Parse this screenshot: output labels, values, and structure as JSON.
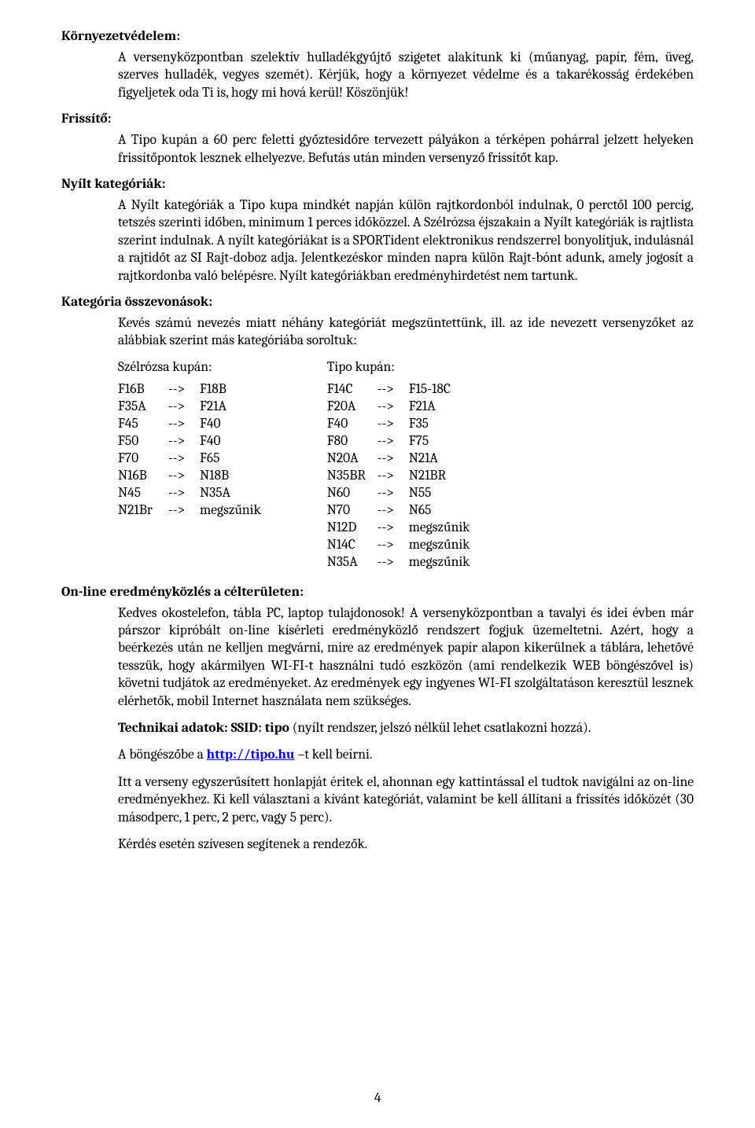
{
  "sections": {
    "env": {
      "heading": "Környezetvédelem:",
      "body": "A versenyközpontban szelektív hulladékgyűjtő szigetet alakítunk ki (műanyag, papír, fém, üveg, szerves hulladék, vegyes szemét). Kérjük, hogy a környezet védelme és a takarékosság érdekében figyeljetek oda Ti is, hogy mi hová kerül! Köszönjük!"
    },
    "refresh": {
      "heading": "Frissítő:",
      "body": "A Tipo kupán a 60 perc feletti győztesidőre tervezett pályákon a térképen pohárral jelzett helyeken frissítőpontok lesznek elhelyezve. Befutás után minden versenyző frissítőt kap."
    },
    "open": {
      "heading": "Nyílt kategóriák:",
      "body": "A Nyílt kategóriák a Tipo kupa mindkét napján külön rajtkordonból indulnak, 0 perctől 100 percig, tetszés szerinti időben, minimum 1 perces időközzel. A Szélrózsa éjszakain a Nyílt kategóriák is rajtlista szerint indulnak. A nyílt kategóriákat is a SPORTident elektronikus rendszerrel bonyolítjuk, indulásnál a rajtidőt az SI Rajt-doboz adja. Jelentkezéskor minden napra külön Rajt-bónt adunk, amely jogosít a rajtkordonba való belépésre. Nyílt kategóriákban eredményhirdetést nem tartunk."
    },
    "merge": {
      "heading": "Kategória összevonások:",
      "intro": "Kevés számú nevezés miatt néhány kategóriát megszüntettünk, ill. az ide nevezett versenyzőket az alábbiak szerint más kategóriába soroltuk:",
      "left_header": "Szélrózsa kupán:",
      "right_header": "Tipo kupán:",
      "arrow": "-->",
      "left": [
        {
          "from": "F16B",
          "to": "F18B"
        },
        {
          "from": "F35A",
          "to": "F21A"
        },
        {
          "from": "F45",
          "to": "F40"
        },
        {
          "from": "F50",
          "to": "F40"
        },
        {
          "from": "F70",
          "to": "F65"
        },
        {
          "from": "N16B",
          "to": "N18B"
        },
        {
          "from": "N45",
          "to": "N35A"
        },
        {
          "from": "N21Br",
          "to": "megszűnik"
        }
      ],
      "right": [
        {
          "from": "F14C",
          "to": "F15-18C"
        },
        {
          "from": "F20A",
          "to": "F21A"
        },
        {
          "from": "F40",
          "to": "F35"
        },
        {
          "from": "F80",
          "to": "F75"
        },
        {
          "from": "N20A",
          "to": "N21A"
        },
        {
          "from": "N35BR",
          "to": "N21BR"
        },
        {
          "from": "N60",
          "to": "N55"
        },
        {
          "from": "N70",
          "to": "N65"
        },
        {
          "from": "N12D",
          "to": "megszűnik"
        },
        {
          "from": "N14C",
          "to": "megszűnik"
        },
        {
          "from": "N35A",
          "to": "megszűnik"
        }
      ]
    },
    "online": {
      "heading": "On-line eredményközlés a célterületen:",
      "p1": "Kedves okostelefon, tábla PC, laptop tulajdonosok! A versenyközpontban a tavalyi és idei évben már párszor kipróbált on-line kísérleti eredményközlő rendszert fogjuk üzemeltetni. Azért, hogy a beérkezés után ne kelljen megvárni, mire az eredmények papír alapon kikerülnek a táblára, lehetővé tesszük, hogy akármilyen WI-FI-t használni tudó eszközön (ami rendelkezik WEB böngészővel is) követni tudjátok az eredményeket. Az eredmények egy ingyenes WI-FI szolgáltatáson keresztül lesznek elérhetők, mobil Internet használata nem szükséges.",
      "p2_lead": "Technikai adatok: SSID: tipo",
      "p2_rest": " (nyílt rendszer, jelszó nélkül lehet csatlakozni hozzá).",
      "p3_lead": "A böngészőbe a ",
      "p3_link": "http://tipo.hu",
      "p3_tail": " –t kell beírni.",
      "p4": "Itt a verseny egyszerűsített honlapját éritek el, ahonnan egy kattintással el tudtok navigálni az on-line eredményekhez. Ki kell választani a kívánt kategóriát, valamint be kell állítani a frissítés időközét (30 másodperc, 1 perc, 2 perc, vagy 5 perc).",
      "p5": "Kérdés esetén szívesen segítenek a rendezők."
    }
  },
  "page_number": "4"
}
